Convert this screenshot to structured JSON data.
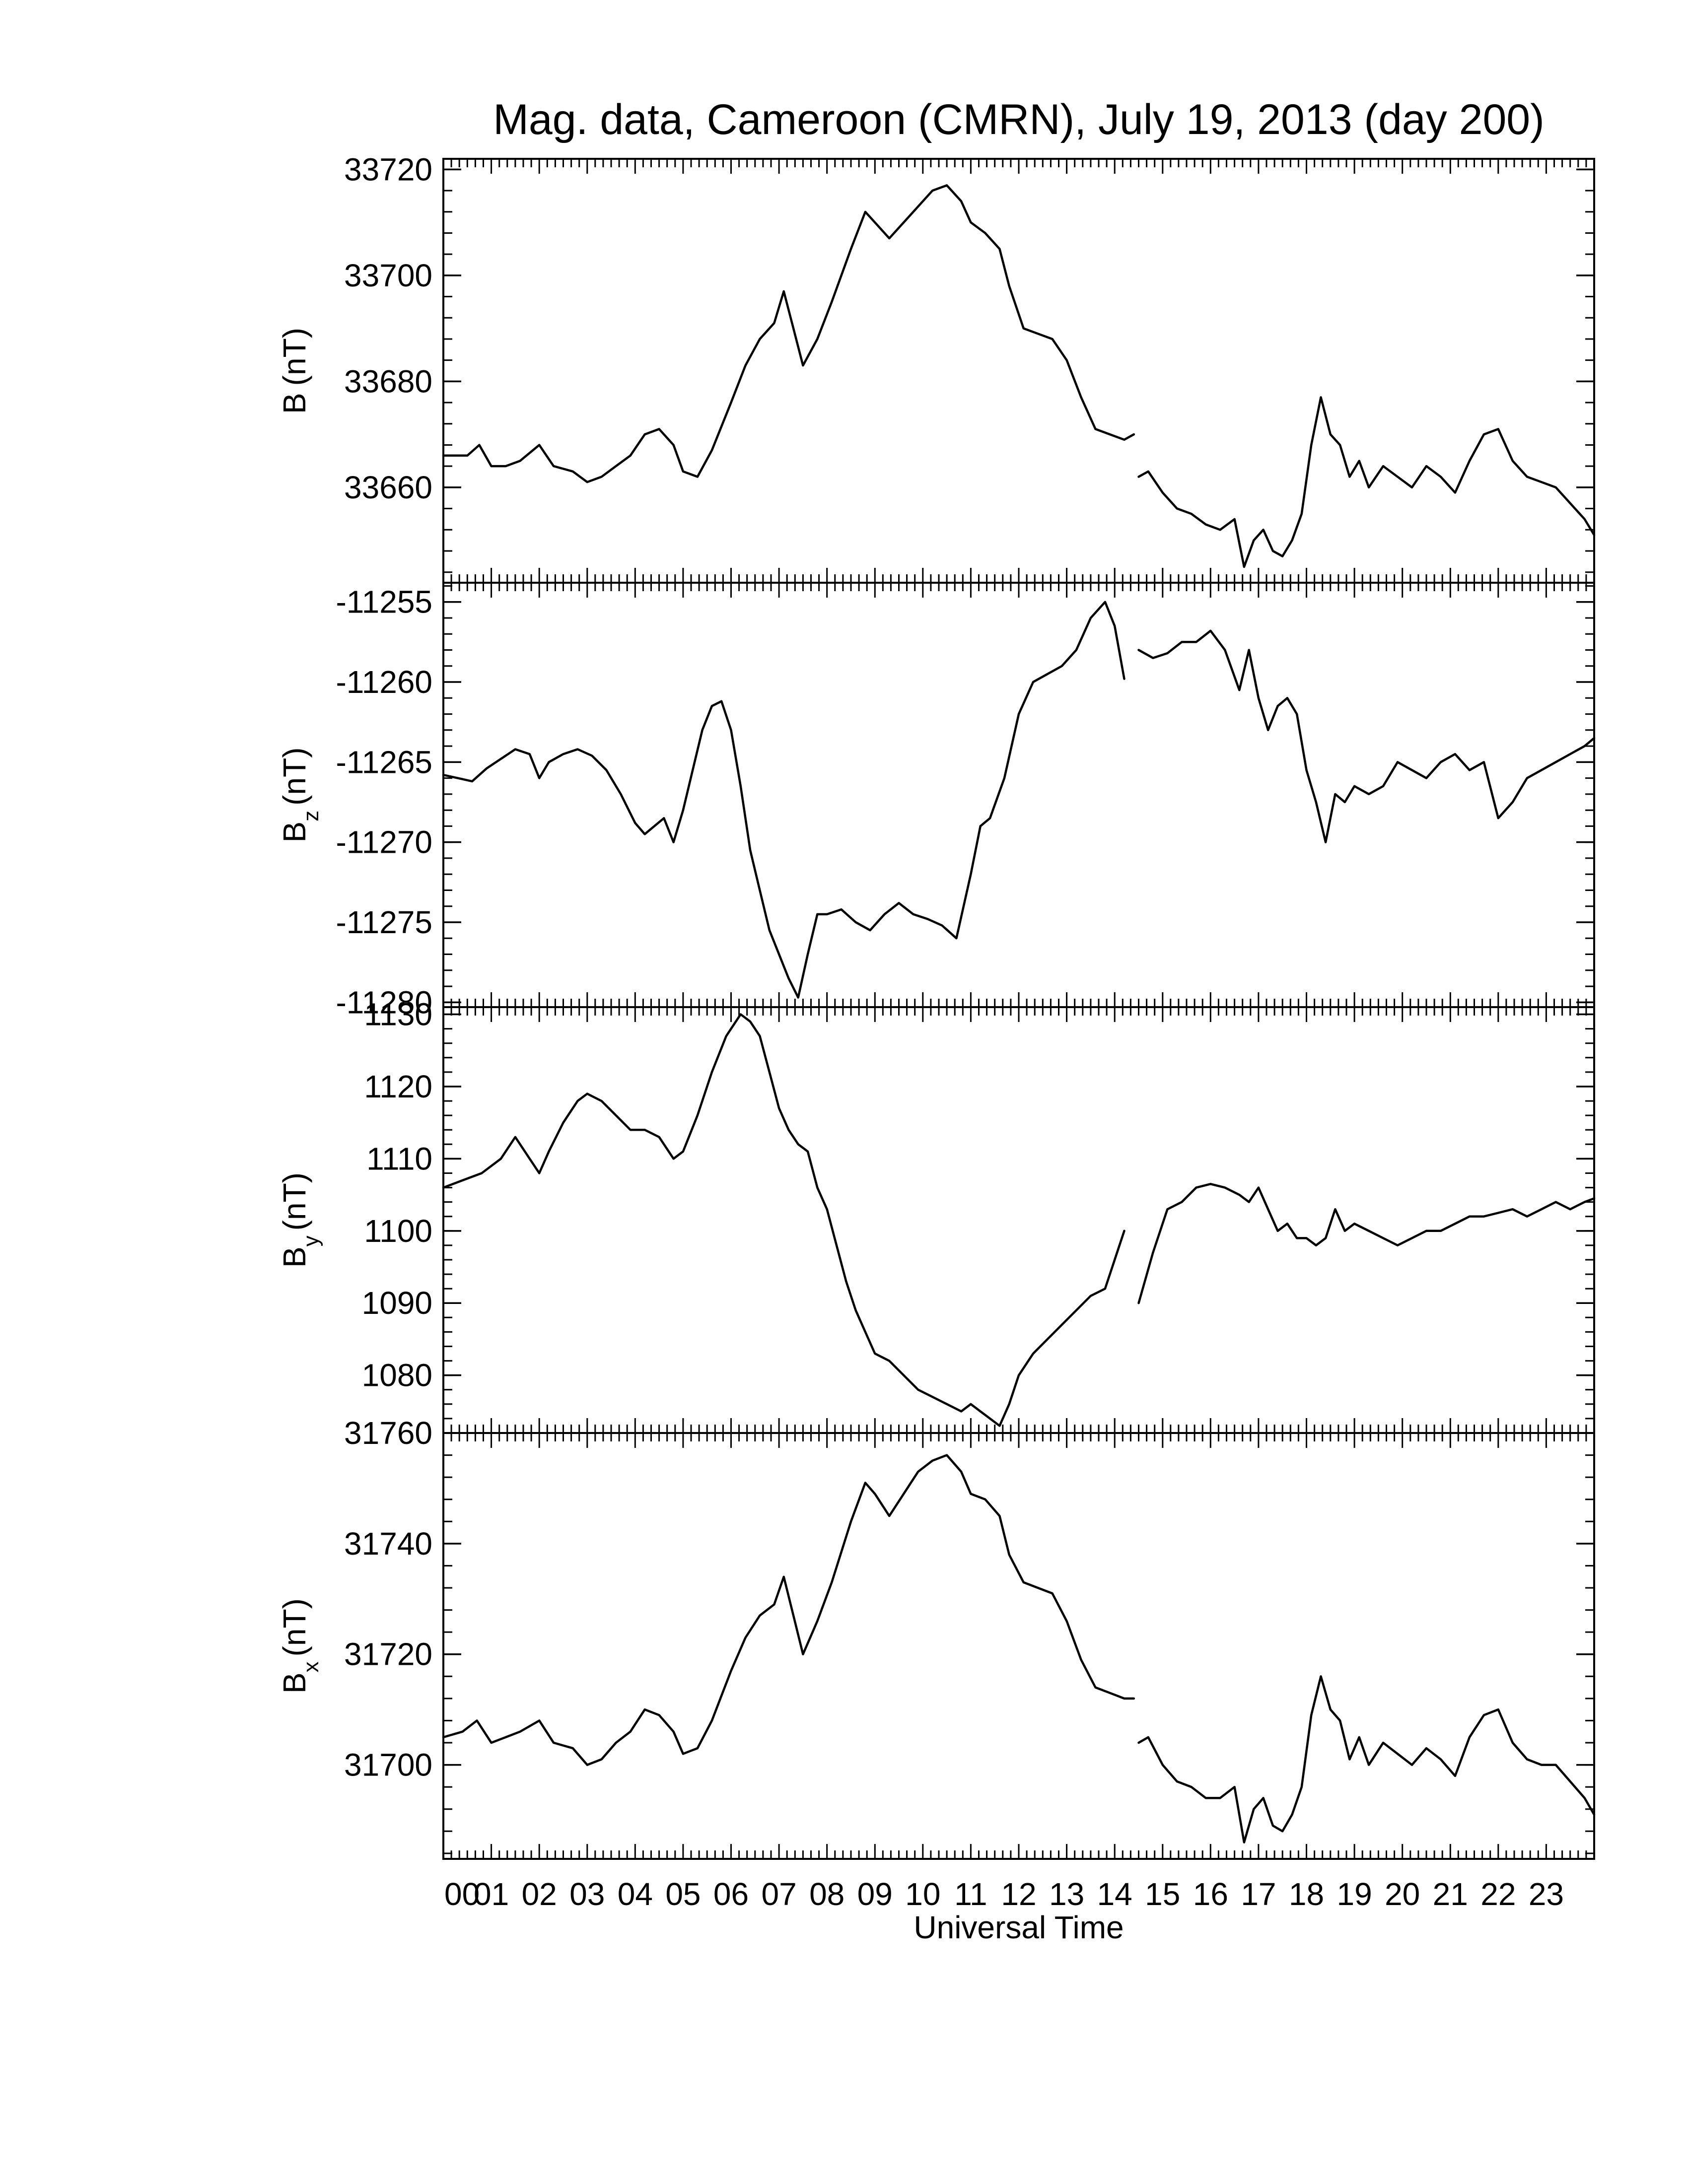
{
  "title": "Mag. data, Cameroon (CMRN), July 19, 2013 (day 200)",
  "xlabel": "Universal Time",
  "x_tick_labels": [
    "00",
    "01",
    "02",
    "03",
    "04",
    "05",
    "06",
    "07",
    "08",
    "09",
    "10",
    "11",
    "12",
    "13",
    "14",
    "15",
    "16",
    "17",
    "18",
    "19",
    "20",
    "21",
    "22",
    "23"
  ],
  "chart_data": [
    {
      "type": "line",
      "panel": "B",
      "ylabel": {
        "main": "B",
        "sub": "",
        "unit": "(nT)"
      },
      "ylim": [
        33642,
        33722
      ],
      "yticks": [
        33660,
        33680,
        33700,
        33720
      ],
      "ytick_labels": [
        "33660",
        "33680",
        "33700",
        "33720"
      ],
      "segments": [
        {
          "x": [
            0.0,
            0.5,
            0.75,
            1.0,
            1.3,
            1.6,
            2.0,
            2.3,
            2.7,
            3.0,
            3.3,
            3.6,
            3.9,
            4.2,
            4.5,
            4.8,
            5.0,
            5.3,
            5.6,
            6.0,
            6.3,
            6.6,
            6.9,
            7.1,
            7.3,
            7.5,
            7.8,
            8.1,
            8.5,
            8.8,
            9.0,
            9.3,
            9.6,
            9.9,
            10.2,
            10.5,
            10.8,
            11.0,
            11.3,
            11.6,
            11.8,
            12.1,
            12.4,
            12.7,
            13.0,
            13.3,
            13.6,
            13.9,
            14.2,
            14.4
          ],
          "y": [
            33666,
            33666,
            33668,
            33664,
            33664,
            33665,
            33668,
            33664,
            33663,
            33661,
            33662,
            33664,
            33666,
            33670,
            33671,
            33668,
            33663,
            33662,
            33667,
            33676,
            33683,
            33688,
            33691,
            33697,
            33690,
            33683,
            33688,
            33695,
            33705,
            33712,
            33710,
            33707,
            33710,
            33713,
            33716,
            33717,
            33714,
            33710,
            33708,
            33705,
            33698,
            33690,
            33689,
            33688,
            33684,
            33677,
            33671,
            33670,
            33669,
            33670
          ]
        },
        {
          "x": [
            14.5,
            14.7,
            15.0,
            15.3,
            15.6,
            15.9,
            16.2,
            16.5,
            16.7,
            16.9,
            17.1,
            17.3,
            17.5,
            17.7,
            17.9,
            18.1,
            18.3,
            18.5,
            18.7,
            18.9,
            19.1,
            19.3,
            19.6,
            19.9,
            20.2,
            20.5,
            20.8,
            21.1,
            21.4,
            21.7,
            22.0,
            22.3,
            22.6,
            22.9,
            23.2,
            23.5,
            23.8,
            24.0
          ],
          "y": [
            33662,
            33663,
            33659,
            33656,
            33655,
            33653,
            33652,
            33654,
            33645,
            33650,
            33652,
            33648,
            33647,
            33650,
            33655,
            33668,
            33677,
            33670,
            33668,
            33662,
            33665,
            33660,
            33664,
            33662,
            33660,
            33664,
            33662,
            33659,
            33665,
            33670,
            33671,
            33665,
            33662,
            33661,
            33660,
            33657,
            33654,
            33651
          ]
        }
      ]
    },
    {
      "type": "line",
      "panel": "Bz",
      "ylabel": {
        "main": "B",
        "sub": "z",
        "unit": "(nT)"
      },
      "ylim": [
        -11280.3,
        -11253.8
      ],
      "yticks": [
        -11280,
        -11275,
        -11270,
        -11265,
        -11260,
        -11255
      ],
      "ytick_labels": [
        "-11280",
        "-11275",
        "-11270",
        "-11265",
        "-11260",
        "-11255"
      ],
      "segments": [
        {
          "x": [
            0.0,
            0.3,
            0.6,
            0.9,
            1.2,
            1.5,
            1.8,
            2.0,
            2.2,
            2.5,
            2.8,
            3.1,
            3.4,
            3.7,
            4.0,
            4.2,
            4.4,
            4.6,
            4.8,
            5.0,
            5.2,
            5.4,
            5.6,
            5.8,
            6.0,
            6.2,
            6.4,
            6.6,
            6.8,
            7.0,
            7.2,
            7.4,
            7.6,
            7.8,
            8.0,
            8.3,
            8.6,
            8.9,
            9.2,
            9.5,
            9.8,
            10.1,
            10.4,
            10.7,
            11.0,
            11.2,
            11.4,
            11.7,
            12.0,
            12.3,
            12.6,
            12.9,
            13.2,
            13.5,
            13.8,
            14.0,
            14.2
          ],
          "y": [
            -11265.8,
            -11266.0,
            -11266.2,
            -11265.4,
            -11264.8,
            -11264.2,
            -11264.5,
            -11266.0,
            -11265.0,
            -11264.5,
            -11264.2,
            -11264.6,
            -11265.5,
            -11267.0,
            -11268.8,
            -11269.5,
            -11269.0,
            -11268.5,
            -11270.0,
            -11268.0,
            -11265.5,
            -11263.0,
            -11261.5,
            -11261.2,
            -11263.0,
            -11266.5,
            -11270.5,
            -11273.0,
            -11275.5,
            -11277.0,
            -11278.5,
            -11279.7,
            -11277.0,
            -11274.5,
            -11274.5,
            -11274.2,
            -11275.0,
            -11275.5,
            -11274.5,
            -11273.8,
            -11274.5,
            -11274.8,
            -11275.2,
            -11276.0,
            -11272.0,
            -11269.0,
            -11268.5,
            -11266.0,
            -11262.0,
            -11260.0,
            -11259.5,
            -11259.0,
            -11258.0,
            -11256.0,
            -11255.0,
            -11256.5,
            -11259.8
          ]
        },
        {
          "x": [
            14.5,
            14.8,
            15.1,
            15.4,
            15.7,
            16.0,
            16.3,
            16.6,
            16.8,
            17.0,
            17.2,
            17.4,
            17.6,
            17.8,
            18.0,
            18.2,
            18.4,
            18.6,
            18.8,
            19.0,
            19.3,
            19.6,
            19.9,
            20.2,
            20.5,
            20.8,
            21.1,
            21.4,
            21.7,
            22.0,
            22.3,
            22.6,
            22.9,
            23.2,
            23.5,
            23.8,
            24.0
          ],
          "y": [
            -11258.0,
            -11258.5,
            -11258.2,
            -11257.5,
            -11257.5,
            -11256.8,
            -11258.0,
            -11260.5,
            -11258.0,
            -11261.0,
            -11263.0,
            -11261.5,
            -11261.0,
            -11262.0,
            -11265.5,
            -11267.5,
            -11270.0,
            -11267.0,
            -11267.5,
            -11266.5,
            -11267.0,
            -11266.5,
            -11265.0,
            -11265.5,
            -11266.0,
            -11265.0,
            -11264.5,
            -11265.5,
            -11265.0,
            -11268.5,
            -11267.5,
            -11266.0,
            -11265.5,
            -11265.0,
            -11264.5,
            -11264.0,
            -11263.5
          ]
        }
      ]
    },
    {
      "type": "line",
      "panel": "By",
      "ylabel": {
        "main": "B",
        "sub": "y",
        "unit": "(nT)"
      },
      "ylim": [
        1072,
        1131
      ],
      "yticks": [
        1080,
        1090,
        1100,
        1110,
        1120,
        1130
      ],
      "ytick_labels": [
        "1080",
        "1090",
        "1100",
        "1110",
        "1120",
        "1130"
      ],
      "segments": [
        {
          "x": [
            0.0,
            0.4,
            0.8,
            1.2,
            1.5,
            1.8,
            2.0,
            2.2,
            2.5,
            2.8,
            3.0,
            3.3,
            3.6,
            3.9,
            4.2,
            4.5,
            4.8,
            5.0,
            5.3,
            5.6,
            5.9,
            6.2,
            6.4,
            6.6,
            6.8,
            7.0,
            7.2,
            7.4,
            7.6,
            7.8,
            8.0,
            8.2,
            8.4,
            8.6,
            8.8,
            9.0,
            9.3,
            9.6,
            9.9,
            10.2,
            10.5,
            10.8,
            11.0,
            11.2,
            11.4,
            11.6,
            11.8,
            12.0,
            12.3,
            12.6,
            12.9,
            13.2,
            13.5,
            13.8,
            14.0,
            14.2
          ],
          "y": [
            1106.0,
            1107.0,
            1108.0,
            1110.0,
            1113.0,
            1110.0,
            1108.0,
            1111.0,
            1115.0,
            1118.0,
            1119.0,
            1118.0,
            1116.0,
            1114.0,
            1114.0,
            1113.0,
            1110.0,
            1111.0,
            1116.0,
            1122.0,
            1127.0,
            1130.0,
            1129.0,
            1127.0,
            1122.0,
            1117.0,
            1114.0,
            1112.0,
            1111.0,
            1106.0,
            1103.0,
            1098.0,
            1093.0,
            1089.0,
            1086.0,
            1083.0,
            1082.0,
            1080.0,
            1078.0,
            1077.0,
            1076.0,
            1075.0,
            1076.0,
            1075.0,
            1074.0,
            1073.0,
            1076.0,
            1080.0,
            1083.0,
            1085.0,
            1087.0,
            1089.0,
            1091.0,
            1092.0,
            1096.0,
            1100.0
          ]
        },
        {
          "x": [
            14.5,
            14.8,
            15.1,
            15.4,
            15.7,
            16.0,
            16.3,
            16.6,
            16.8,
            17.0,
            17.2,
            17.4,
            17.6,
            17.8,
            18.0,
            18.2,
            18.4,
            18.6,
            18.8,
            19.0,
            19.3,
            19.6,
            19.9,
            20.2,
            20.5,
            20.8,
            21.1,
            21.4,
            21.7,
            22.0,
            22.3,
            22.6,
            22.9,
            23.2,
            23.5,
            23.8,
            24.0
          ],
          "y": [
            1090.0,
            1097.0,
            1103.0,
            1104.0,
            1106.0,
            1106.5,
            1106.0,
            1105.0,
            1104.0,
            1106.0,
            1103.0,
            1100.0,
            1101.0,
            1099.0,
            1099.0,
            1098.0,
            1099.0,
            1103.0,
            1100.0,
            1101.0,
            1100.0,
            1099.0,
            1098.0,
            1099.0,
            1100.0,
            1100.0,
            1101.0,
            1102.0,
            1102.0,
            1102.5,
            1103.0,
            1102.0,
            1103.0,
            1104.0,
            1103.0,
            1104.0,
            1104.5
          ]
        }
      ]
    },
    {
      "type": "line",
      "panel": "Bx",
      "ylabel": {
        "main": "B",
        "sub": "x",
        "unit": "(nT)"
      },
      "ylim": [
        31683,
        31760
      ],
      "yticks": [
        31700,
        31720,
        31740,
        31760
      ],
      "ytick_labels": [
        "31700",
        "31720",
        "31740",
        "31760"
      ],
      "segments": [
        {
          "x": [
            0.0,
            0.4,
            0.7,
            1.0,
            1.3,
            1.6,
            2.0,
            2.3,
            2.7,
            3.0,
            3.3,
            3.6,
            3.9,
            4.2,
            4.5,
            4.8,
            5.0,
            5.3,
            5.6,
            6.0,
            6.3,
            6.6,
            6.9,
            7.1,
            7.3,
            7.5,
            7.8,
            8.1,
            8.5,
            8.8,
            9.0,
            9.3,
            9.6,
            9.9,
            10.2,
            10.5,
            10.8,
            11.0,
            11.3,
            11.6,
            11.8,
            12.1,
            12.4,
            12.7,
            13.0,
            13.3,
            13.6,
            13.9,
            14.2,
            14.4
          ],
          "y": [
            31705,
            31706,
            31708,
            31704,
            31705,
            31706,
            31708,
            31704,
            31703,
            31700,
            31701,
            31704,
            31706,
            31710,
            31709,
            31706,
            31702,
            31703,
            31708,
            31717,
            31723,
            31727,
            31729,
            31734,
            31727,
            31720,
            31726,
            31733,
            31744,
            31751,
            31749,
            31745,
            31749,
            31753,
            31755,
            31756,
            31753,
            31749,
            31748,
            31745,
            31738,
            31733,
            31732,
            31731,
            31726,
            31719,
            31714,
            31713,
            31712,
            31712
          ]
        },
        {
          "x": [
            14.5,
            14.7,
            15.0,
            15.3,
            15.6,
            15.9,
            16.2,
            16.5,
            16.7,
            16.9,
            17.1,
            17.3,
            17.5,
            17.7,
            17.9,
            18.1,
            18.3,
            18.5,
            18.7,
            18.9,
            19.1,
            19.3,
            19.6,
            19.9,
            20.2,
            20.5,
            20.8,
            21.1,
            21.4,
            21.7,
            22.0,
            22.3,
            22.6,
            22.9,
            23.2,
            23.5,
            23.8,
            24.0
          ],
          "y": [
            31704,
            31705,
            31700,
            31697,
            31696,
            31694,
            31694,
            31696,
            31686,
            31692,
            31694,
            31689,
            31688,
            31691,
            31696,
            31709,
            31716,
            31710,
            31708,
            31701,
            31705,
            31700,
            31704,
            31702,
            31700,
            31703,
            31701,
            31698,
            31705,
            31709,
            31710,
            31704,
            31701,
            31700,
            31700,
            31697,
            31694,
            31691
          ]
        }
      ]
    }
  ]
}
